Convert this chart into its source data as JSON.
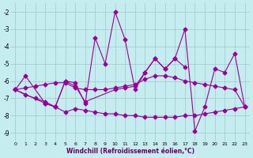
{
  "bg_color": "#c5edef",
  "grid_color": "#9dc8cc",
  "line_color": "#990099",
  "xlabel": "Windchill (Refroidissement éolien,°C)",
  "xlabel_color": "#660066",
  "ylim": [
    -9.5,
    -1.5
  ],
  "xlim": [
    -0.5,
    23.5
  ],
  "yticks": [
    -9,
    -8,
    -7,
    -6,
    -5,
    -4,
    -3,
    -2
  ],
  "lines": [
    {
      "x": [
        0,
        1,
        3,
        4,
        5,
        6,
        7,
        8,
        9,
        10,
        11,
        12,
        13,
        14,
        15,
        16,
        17,
        18,
        19,
        20,
        21,
        22,
        23
      ],
      "y": [
        -6.5,
        -5.7,
        -7.3,
        -7.5,
        -6.0,
        -6.1,
        -7.3,
        -3.5,
        -5.0,
        -2.0,
        -3.6,
        -6.5,
        -5.5,
        -4.7,
        -5.3,
        -4.7,
        -3.0,
        -8.9,
        -7.5,
        -5.3,
        -5.5,
        -4.4,
        -7.5
      ]
    },
    {
      "x": [
        0,
        1,
        2,
        3,
        4,
        5,
        6,
        7,
        8,
        9,
        10,
        11,
        12,
        13,
        14,
        15,
        16,
        17,
        18,
        19,
        20,
        21,
        22,
        23
      ],
      "y": [
        -6.5,
        -6.4,
        -6.3,
        -6.2,
        -6.1,
        -6.1,
        -6.4,
        -6.5,
        -6.5,
        -6.5,
        -6.4,
        -6.3,
        -6.2,
        -5.9,
        -5.7,
        -5.7,
        -5.8,
        -6.0,
        -6.1,
        -6.2,
        -6.3,
        -6.4,
        -6.5,
        -7.5
      ]
    },
    {
      "x": [
        0,
        1,
        2,
        3,
        4,
        5,
        6,
        7,
        8,
        9,
        10,
        11,
        12,
        13,
        14,
        15,
        16,
        17,
        18,
        19,
        20,
        21,
        22,
        23
      ],
      "y": [
        -6.5,
        -6.8,
        -7.0,
        -7.2,
        -7.5,
        -7.8,
        -7.6,
        -7.7,
        -7.8,
        -7.9,
        -7.9,
        -8.0,
        -8.0,
        -8.1,
        -8.1,
        -8.1,
        -8.1,
        -8.0,
        -8.0,
        -7.9,
        -7.8,
        -7.7,
        -7.6,
        -7.5
      ]
    },
    {
      "x": [
        0,
        3,
        4,
        5,
        6,
        7,
        10,
        11,
        12,
        13,
        14,
        15,
        16,
        17
      ],
      "y": [
        -6.5,
        -7.3,
        -7.5,
        -6.0,
        -6.3,
        -7.2,
        -6.5,
        -6.4,
        -6.3,
        -5.5,
        -4.7,
        -5.3,
        -4.7,
        -5.2
      ]
    }
  ]
}
